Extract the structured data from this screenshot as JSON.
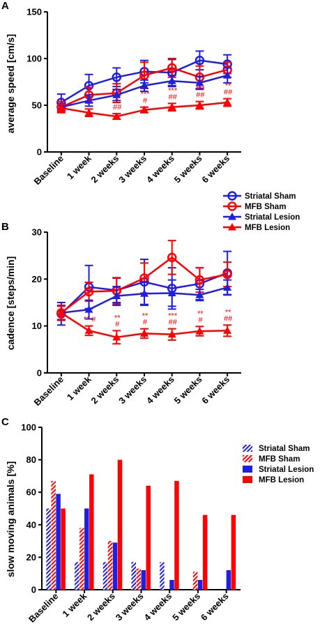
{
  "colors": {
    "blue": "#1f1fe0",
    "red": "#ff0000",
    "axis": "#000000"
  },
  "chart_data": [
    {
      "panel": "A",
      "type": "line",
      "categories": [
        "Baseline",
        "1 week",
        "2 weeks",
        "3 weeks",
        "4 weeks",
        "5 weeks",
        "6 weeks"
      ],
      "ylabel": "average speed [cm/s]",
      "ylim": [
        0,
        150
      ],
      "yticks": [
        0,
        50,
        100,
        150
      ],
      "series": [
        {
          "name": "Striatal Sham",
          "color": "#1f1fe0",
          "marker": "circle",
          "values": [
            53,
            71,
            80,
            86,
            85,
            98,
            94
          ],
          "err": [
            9,
            12,
            10,
            12,
            14,
            10,
            10
          ]
        },
        {
          "name": "MFB Sham",
          "color": "#ff0000",
          "marker": "circle",
          "values": [
            48,
            61,
            63,
            82,
            90,
            80,
            88
          ],
          "err": [
            6,
            8,
            10,
            14,
            10,
            12,
            8
          ]
        },
        {
          "name": "Striatal Lesion",
          "color": "#1f1fe0",
          "marker": "triangle",
          "values": [
            48,
            55,
            61,
            71,
            76,
            74,
            82
          ],
          "err": [
            4,
            6,
            6,
            6,
            6,
            7,
            8
          ]
        },
        {
          "name": "MFB Lesion",
          "color": "#ff0000",
          "marker": "triangle",
          "values": [
            47,
            42,
            38,
            45,
            48,
            50,
            53
          ],
          "err": [
            4,
            4,
            3,
            3,
            4,
            4,
            4
          ]
        }
      ],
      "annotations": [
        {
          "category": "1 week",
          "lines": [
            "*"
          ]
        },
        {
          "category": "2 weeks",
          "lines": [
            "*",
            "##"
          ]
        },
        {
          "category": "3 weeks",
          "lines": [
            "***",
            "#"
          ]
        },
        {
          "category": "4 weeks",
          "lines": [
            "***",
            "##"
          ]
        },
        {
          "category": "5 weeks",
          "lines": [
            "***",
            "##"
          ]
        },
        {
          "category": "6 weeks",
          "lines": [
            "**",
            "##"
          ]
        }
      ]
    },
    {
      "panel": "B",
      "type": "line",
      "categories": [
        "Baseline",
        "1 week",
        "2 weeks",
        "3 weeks",
        "4 weeks",
        "5 weeks",
        "6 weeks"
      ],
      "ylabel": "cadence [steps/min]",
      "ylim": [
        0,
        30
      ],
      "yticks": [
        0,
        10,
        20,
        30
      ],
      "series": [
        {
          "name": "Striatal Sham",
          "color": "#1f1fe0",
          "marker": "circle",
          "values": [
            12.6,
            18.3,
            17.6,
            19.4,
            18.0,
            19.0,
            21.3
          ],
          "err": [
            2.4,
            4.6,
            2.6,
            4.8,
            4.4,
            3.4,
            4.6
          ]
        },
        {
          "name": "MFB Sham",
          "color": "#ff0000",
          "marker": "circle",
          "values": [
            12.8,
            17.3,
            17.5,
            20.2,
            24.6,
            19.8,
            21.0
          ],
          "err": [
            1.6,
            2.0,
            2.8,
            3.2,
            3.6,
            2.6,
            2.6
          ]
        },
        {
          "name": "Striatal Lesion",
          "color": "#1f1fe0",
          "marker": "triangle",
          "values": [
            12.8,
            13.5,
            16.4,
            16.9,
            17.0,
            16.6,
            18.2
          ],
          "err": [
            1.5,
            2.0,
            2.0,
            2.5,
            2.8,
            1.2,
            1.6
          ]
        },
        {
          "name": "MFB Lesion",
          "color": "#ff0000",
          "marker": "triangle",
          "values": [
            12.8,
            9.0,
            7.6,
            8.4,
            8.2,
            8.9,
            9.0
          ],
          "err": [
            1.4,
            1.0,
            1.4,
            1.0,
            1.2,
            1.0,
            1.2
          ]
        }
      ],
      "annotations": [
        {
          "category": "1 week",
          "lines": [
            "** #"
          ]
        },
        {
          "category": "2 weeks",
          "lines": [
            "**",
            "#"
          ]
        },
        {
          "category": "3 weeks",
          "lines": [
            "**",
            "#"
          ]
        },
        {
          "category": "4 weeks",
          "lines": [
            "***",
            "##"
          ]
        },
        {
          "category": "5 weeks",
          "lines": [
            "**",
            "#"
          ]
        },
        {
          "category": "6 weeks",
          "lines": [
            "**",
            "##"
          ]
        }
      ]
    },
    {
      "panel": "C",
      "type": "bar",
      "categories": [
        "Baseline",
        "1 week",
        "2 weeks",
        "3 weeks",
        "4 weeks",
        "5 weeks",
        "6 weeks"
      ],
      "ylabel": "slow moving animals [%]",
      "ylim": [
        0,
        100
      ],
      "yticks": [
        0,
        20,
        40,
        60,
        80,
        100
      ],
      "series": [
        {
          "name": "Striatal Sham",
          "color": "#1f1fe0",
          "pattern": "hatched",
          "values": [
            50,
            17,
            17,
            17,
            17,
            0,
            0
          ]
        },
        {
          "name": "MFB Sham",
          "color": "#ff0000",
          "pattern": "hatched",
          "values": [
            67,
            38,
            30,
            13,
            0,
            11,
            0
          ]
        },
        {
          "name": "Striatal Lesion",
          "color": "#1f1fe0",
          "pattern": "solid",
          "values": [
            59,
            50,
            29,
            12,
            6,
            6,
            12
          ]
        },
        {
          "name": "MFB Lesion",
          "color": "#ff0000",
          "pattern": "solid",
          "values": [
            50,
            71,
            80,
            64,
            67,
            46,
            46
          ]
        }
      ]
    }
  ]
}
